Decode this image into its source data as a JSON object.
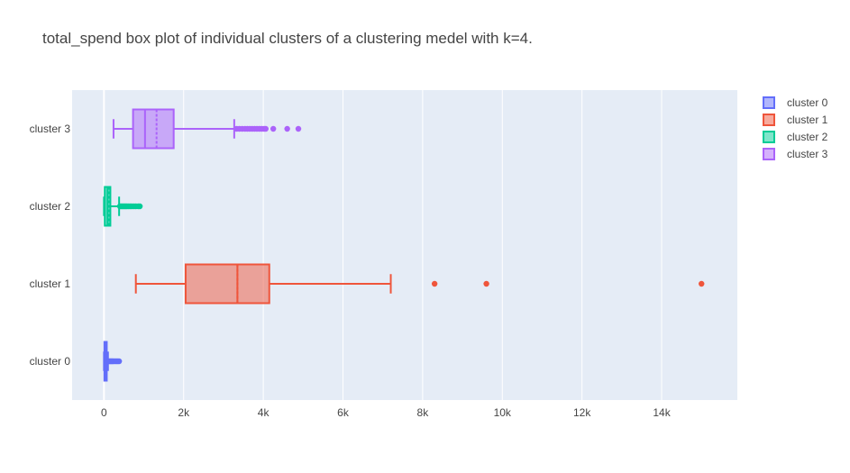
{
  "chart_data": {
    "type": "box",
    "title": "total_spend box plot of individual clusters of a clustering medel with k=4.",
    "xlabel": "",
    "ylabel": "",
    "orientation": "horizontal",
    "xlim": [
      -800,
      15900
    ],
    "x_ticks": [
      {
        "value": 0,
        "label": "0"
      },
      {
        "value": 2000,
        "label": "2k"
      },
      {
        "value": 4000,
        "label": "4k"
      },
      {
        "value": 6000,
        "label": "6k"
      },
      {
        "value": 8000,
        "label": "8k"
      },
      {
        "value": 10000,
        "label": "10k"
      },
      {
        "value": 12000,
        "label": "12k"
      },
      {
        "value": 14000,
        "label": "14k"
      }
    ],
    "grid": true,
    "legend_position": "top-right",
    "categories": [
      "cluster 0",
      "cluster 1",
      "cluster 2",
      "cluster 3"
    ],
    "series": [
      {
        "name": "cluster 0",
        "color": "#636efa",
        "min": 0,
        "q1": 10,
        "median": 30,
        "mean": 50,
        "q3": 70,
        "max": 100,
        "outliers": [
          110,
          130,
          150,
          170,
          190,
          210,
          230,
          260,
          290,
          320,
          350,
          380
        ]
      },
      {
        "name": "cluster 1",
        "color": "#ef553b",
        "min": 800,
        "q1": 2050,
        "median": 3350,
        "mean": 3350,
        "q3": 4150,
        "max": 7200,
        "outliers": [
          8300,
          9600,
          15000
        ]
      },
      {
        "name": "cluster 2",
        "color": "#00cc96",
        "min": 0,
        "q1": 20,
        "median": 90,
        "mean": 120,
        "q3": 160,
        "max": 380,
        "outliers": [
          400,
          430,
          460,
          490,
          520,
          550,
          580,
          620,
          660,
          700,
          750,
          800,
          860,
          900
        ]
      },
      {
        "name": "cluster 3",
        "color": "#ab63fa",
        "min": 240,
        "q1": 730,
        "median": 1030,
        "mean": 1320,
        "q3": 1750,
        "max": 3270,
        "outliers": [
          3330,
          3400,
          3470,
          3540,
          3600,
          3660,
          3720,
          3780,
          3840,
          3900,
          3960,
          4020,
          4060,
          4250,
          4600,
          4880
        ]
      }
    ],
    "legend": [
      "cluster 0",
      "cluster 1",
      "cluster 2",
      "cluster 3"
    ]
  }
}
